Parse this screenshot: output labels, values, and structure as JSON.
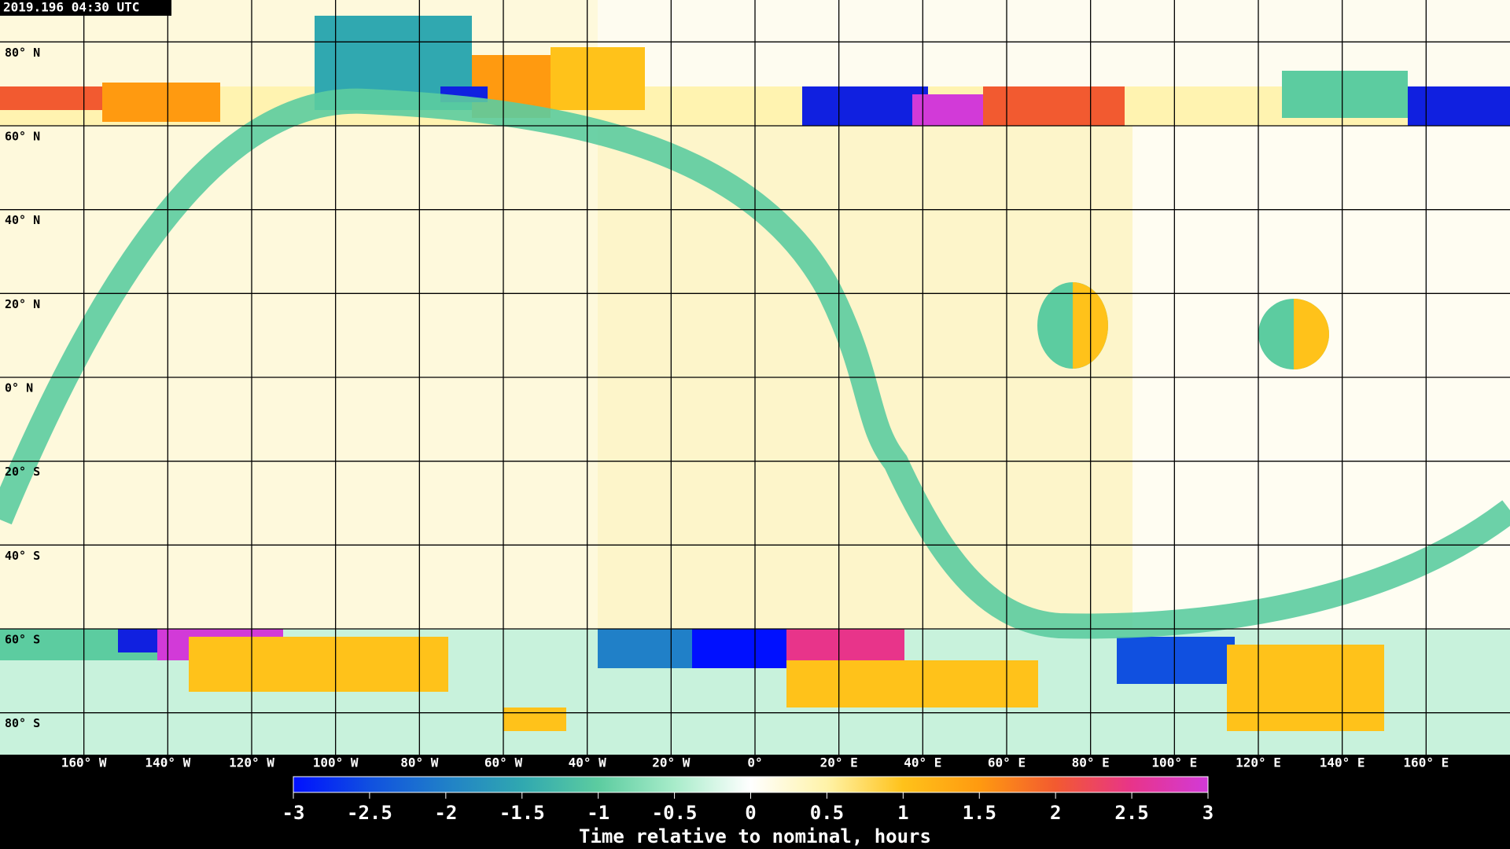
{
  "title": "2019.196 04:30 UTC",
  "map": {
    "lat_ticks": [
      {
        "value": 80,
        "label": "80° N"
      },
      {
        "value": 60,
        "label": "60° N"
      },
      {
        "value": 40,
        "label": "40° N"
      },
      {
        "value": 20,
        "label": "20° N"
      },
      {
        "value": 0,
        "label": "0° N"
      },
      {
        "value": -20,
        "label": "20° S"
      },
      {
        "value": -40,
        "label": "40° S"
      },
      {
        "value": -60,
        "label": "60° S"
      },
      {
        "value": -80,
        "label": "80° S"
      }
    ],
    "lon_ticks": [
      {
        "value": -160,
        "label": "160° W"
      },
      {
        "value": -140,
        "label": "140° W"
      },
      {
        "value": -120,
        "label": "120° W"
      },
      {
        "value": -100,
        "label": "100° W"
      },
      {
        "value": -80,
        "label": "80° W"
      },
      {
        "value": -60,
        "label": "60° W"
      },
      {
        "value": -40,
        "label": "40° W"
      },
      {
        "value": -20,
        "label": "20° W"
      },
      {
        "value": 0,
        "label": "0°"
      },
      {
        "value": 20,
        "label": "20° E"
      },
      {
        "value": 40,
        "label": "40° E"
      },
      {
        "value": 60,
        "label": "60° E"
      },
      {
        "value": 80,
        "label": "80° E"
      },
      {
        "value": 100,
        "label": "100° E"
      },
      {
        "value": 120,
        "label": "120° E"
      },
      {
        "value": 140,
        "label": "140° E"
      },
      {
        "value": 160,
        "label": "160° E"
      }
    ],
    "lonlim": [
      -180,
      180
    ],
    "latlim": [
      90,
      -90
    ]
  },
  "colorbar": {
    "label": "Time relative to nominal, hours",
    "lim": [
      -3,
      3
    ],
    "ticks": [
      -3,
      -2.5,
      -2,
      -1.5,
      -1,
      -0.5,
      0,
      0.5,
      1,
      1.5,
      2,
      2.5,
      3
    ],
    "colors": [
      "#0010ff",
      "#1050e0",
      "#2080c8",
      "#30a8b0",
      "#5ccca0",
      "#a8ecca",
      "#ffffff",
      "#fff3a8",
      "#ffc21a",
      "#ff9a10",
      "#f25a30",
      "#e8348a",
      "#d23ad8"
    ]
  }
}
